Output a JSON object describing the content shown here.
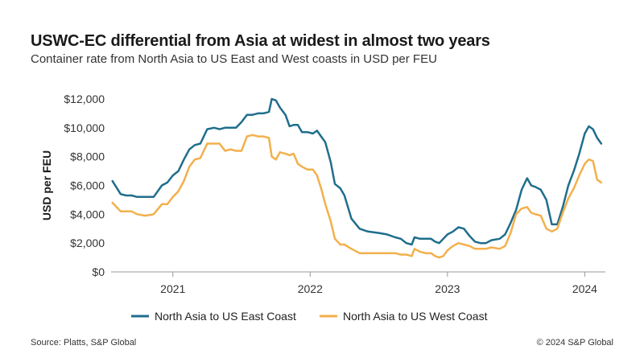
{
  "title": "USWC-EC differential from Asia at widest in almost two years",
  "subtitle": "Container rate from North Asia to US East and West coasts in USD per FEU",
  "source": "Source: Platts, S&P Global",
  "copyright": "© 2024 S&P Global",
  "chart_data": {
    "type": "line",
    "ylabel": "USD per FEU",
    "xlabel": "",
    "ylim": [
      0,
      12000
    ],
    "xlim": [
      2020.55,
      2024.15
    ],
    "yticks": [
      0,
      2000,
      4000,
      6000,
      8000,
      10000,
      12000
    ],
    "ytick_labels": [
      "$0",
      "$2,000",
      "$4,000",
      "$6,000",
      "$8,000",
      "$10,000",
      "$12,000"
    ],
    "xticks": [
      2021,
      2022,
      2023,
      2024
    ],
    "xtick_labels": [
      "2021",
      "2022",
      "2023",
      "2024"
    ],
    "grid": false,
    "legend_position": "bottom",
    "colors": {
      "east": "#1f6e8c",
      "west": "#f2b04c",
      "axis": "#999999"
    },
    "series": [
      {
        "name": "North Asia to US East Coast",
        "color": "#1f6e8c",
        "points": [
          [
            2020.56,
            6300
          ],
          [
            2020.62,
            5400
          ],
          [
            2020.66,
            5300
          ],
          [
            2020.7,
            5300
          ],
          [
            2020.74,
            5200
          ],
          [
            2020.8,
            5200
          ],
          [
            2020.86,
            5200
          ],
          [
            2020.92,
            6000
          ],
          [
            2020.96,
            6200
          ],
          [
            2021.0,
            6700
          ],
          [
            2021.04,
            7000
          ],
          [
            2021.08,
            7800
          ],
          [
            2021.12,
            8500
          ],
          [
            2021.16,
            8800
          ],
          [
            2021.2,
            8900
          ],
          [
            2021.25,
            9900
          ],
          [
            2021.3,
            10000
          ],
          [
            2021.34,
            9900
          ],
          [
            2021.38,
            10000
          ],
          [
            2021.42,
            10000
          ],
          [
            2021.46,
            10000
          ],
          [
            2021.5,
            10400
          ],
          [
            2021.54,
            10900
          ],
          [
            2021.58,
            10900
          ],
          [
            2021.62,
            11000
          ],
          [
            2021.66,
            11000
          ],
          [
            2021.7,
            11100
          ],
          [
            2021.72,
            12000
          ],
          [
            2021.75,
            11900
          ],
          [
            2021.78,
            11400
          ],
          [
            2021.82,
            10900
          ],
          [
            2021.85,
            10100
          ],
          [
            2021.88,
            10200
          ],
          [
            2021.91,
            10200
          ],
          [
            2021.94,
            9700
          ],
          [
            2021.98,
            9700
          ],
          [
            2022.02,
            9600
          ],
          [
            2022.05,
            9800
          ],
          [
            2022.08,
            9400
          ],
          [
            2022.11,
            9000
          ],
          [
            2022.15,
            7600
          ],
          [
            2022.18,
            6100
          ],
          [
            2022.22,
            5800
          ],
          [
            2022.25,
            5300
          ],
          [
            2022.3,
            3700
          ],
          [
            2022.36,
            3000
          ],
          [
            2022.42,
            2800
          ],
          [
            2022.5,
            2700
          ],
          [
            2022.56,
            2600
          ],
          [
            2022.62,
            2400
          ],
          [
            2022.66,
            2300
          ],
          [
            2022.7,
            2000
          ],
          [
            2022.74,
            1900
          ],
          [
            2022.76,
            2400
          ],
          [
            2022.8,
            2300
          ],
          [
            2022.84,
            2300
          ],
          [
            2022.88,
            2300
          ],
          [
            2022.91,
            2100
          ],
          [
            2022.94,
            2000
          ],
          [
            2022.97,
            2300
          ],
          [
            2023.0,
            2600
          ],
          [
            2023.04,
            2800
          ],
          [
            2023.08,
            3100
          ],
          [
            2023.12,
            3000
          ],
          [
            2023.16,
            2500
          ],
          [
            2023.2,
            2100
          ],
          [
            2023.24,
            2000
          ],
          [
            2023.28,
            2000
          ],
          [
            2023.32,
            2200
          ],
          [
            2023.38,
            2300
          ],
          [
            2023.42,
            2600
          ],
          [
            2023.46,
            3400
          ],
          [
            2023.5,
            4300
          ],
          [
            2023.54,
            5700
          ],
          [
            2023.58,
            6500
          ],
          [
            2023.61,
            6000
          ],
          [
            2023.64,
            5900
          ],
          [
            2023.68,
            5700
          ],
          [
            2023.72,
            5000
          ],
          [
            2023.76,
            3300
          ],
          [
            2023.8,
            3300
          ],
          [
            2023.84,
            4500
          ],
          [
            2023.88,
            6000
          ],
          [
            2023.92,
            7000
          ],
          [
            2023.96,
            8200
          ],
          [
            2024.0,
            9600
          ],
          [
            2024.03,
            10100
          ],
          [
            2024.06,
            9900
          ],
          [
            2024.09,
            9300
          ],
          [
            2024.12,
            8900
          ]
        ]
      },
      {
        "name": "North Asia to US West Coast",
        "color": "#f2b04c",
        "points": [
          [
            2020.56,
            4800
          ],
          [
            2020.62,
            4200
          ],
          [
            2020.66,
            4200
          ],
          [
            2020.7,
            4200
          ],
          [
            2020.74,
            4000
          ],
          [
            2020.8,
            3900
          ],
          [
            2020.86,
            4000
          ],
          [
            2020.92,
            4700
          ],
          [
            2020.96,
            4700
          ],
          [
            2021.0,
            5200
          ],
          [
            2021.04,
            5600
          ],
          [
            2021.08,
            6300
          ],
          [
            2021.12,
            7300
          ],
          [
            2021.16,
            7800
          ],
          [
            2021.2,
            7900
          ],
          [
            2021.25,
            8900
          ],
          [
            2021.3,
            8900
          ],
          [
            2021.34,
            8900
          ],
          [
            2021.38,
            8400
          ],
          [
            2021.42,
            8500
          ],
          [
            2021.46,
            8400
          ],
          [
            2021.5,
            8400
          ],
          [
            2021.54,
            9400
          ],
          [
            2021.58,
            9500
          ],
          [
            2021.62,
            9400
          ],
          [
            2021.66,
            9400
          ],
          [
            2021.7,
            9300
          ],
          [
            2021.72,
            8000
          ],
          [
            2021.75,
            7800
          ],
          [
            2021.78,
            8300
          ],
          [
            2021.82,
            8200
          ],
          [
            2021.85,
            8100
          ],
          [
            2021.88,
            8200
          ],
          [
            2021.91,
            7500
          ],
          [
            2021.94,
            7300
          ],
          [
            2021.98,
            7100
          ],
          [
            2022.02,
            7100
          ],
          [
            2022.05,
            6700
          ],
          [
            2022.08,
            5800
          ],
          [
            2022.11,
            4700
          ],
          [
            2022.15,
            3500
          ],
          [
            2022.18,
            2300
          ],
          [
            2022.22,
            1900
          ],
          [
            2022.25,
            1900
          ],
          [
            2022.3,
            1600
          ],
          [
            2022.36,
            1300
          ],
          [
            2022.42,
            1300
          ],
          [
            2022.5,
            1300
          ],
          [
            2022.56,
            1300
          ],
          [
            2022.62,
            1300
          ],
          [
            2022.66,
            1200
          ],
          [
            2022.7,
            1200
          ],
          [
            2022.74,
            1100
          ],
          [
            2022.76,
            1600
          ],
          [
            2022.8,
            1400
          ],
          [
            2022.84,
            1300
          ],
          [
            2022.88,
            1300
          ],
          [
            2022.91,
            1100
          ],
          [
            2022.94,
            1000
          ],
          [
            2022.97,
            1100
          ],
          [
            2023.0,
            1500
          ],
          [
            2023.04,
            1800
          ],
          [
            2023.08,
            2000
          ],
          [
            2023.12,
            1900
          ],
          [
            2023.16,
            1800
          ],
          [
            2023.2,
            1600
          ],
          [
            2023.24,
            1600
          ],
          [
            2023.28,
            1600
          ],
          [
            2023.32,
            1700
          ],
          [
            2023.38,
            1600
          ],
          [
            2023.42,
            1800
          ],
          [
            2023.46,
            2700
          ],
          [
            2023.5,
            4000
          ],
          [
            2023.54,
            4400
          ],
          [
            2023.58,
            4500
          ],
          [
            2023.61,
            4100
          ],
          [
            2023.64,
            4000
          ],
          [
            2023.68,
            3900
          ],
          [
            2023.72,
            3000
          ],
          [
            2023.76,
            2800
          ],
          [
            2023.8,
            3000
          ],
          [
            2023.84,
            4100
          ],
          [
            2023.88,
            5100
          ],
          [
            2023.92,
            5800
          ],
          [
            2023.96,
            6700
          ],
          [
            2024.0,
            7500
          ],
          [
            2024.03,
            7800
          ],
          [
            2024.06,
            7700
          ],
          [
            2024.09,
            6400
          ],
          [
            2024.12,
            6200
          ]
        ]
      }
    ]
  }
}
